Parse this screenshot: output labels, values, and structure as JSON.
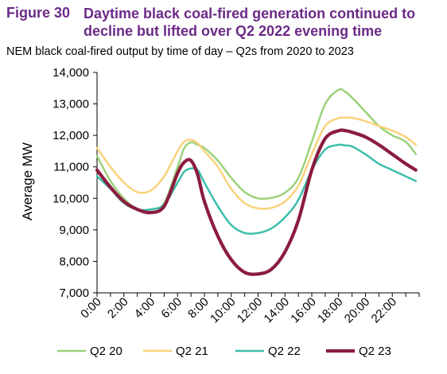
{
  "figure": {
    "number": "Figure 30",
    "title": "Daytime black coal-fired generation continued to decline but lifted over Q2 2022 evening time",
    "subtitle": "NEM black coal-fired output by time of day – Q2s from 2020 to 2023"
  },
  "chart_data": {
    "type": "line",
    "title": "",
    "xlabel": "",
    "ylabel": "Average MW",
    "ylim": [
      7000,
      14000
    ],
    "yticks": [
      7000,
      8000,
      9000,
      10000,
      11000,
      12000,
      13000,
      14000
    ],
    "ytick_labels": [
      "7,000",
      "8,000",
      "9,000",
      "10,000",
      "11,000",
      "12,000",
      "13,000",
      "14,000"
    ],
    "xlim": [
      0,
      24
    ],
    "xticks": [
      0,
      2,
      4,
      6,
      8,
      10,
      12,
      14,
      16,
      18,
      20,
      22
    ],
    "xtick_labels": [
      "0:00",
      "2:00",
      "4:00",
      "6:00",
      "8:00",
      "10:00",
      "12:00",
      "14:00",
      "16:00",
      "18:00",
      "20:00",
      "22:00"
    ],
    "x": [
      0,
      1,
      2,
      3,
      4,
      5,
      6,
      6.5,
      7,
      7.5,
      8,
      9,
      10,
      11,
      12,
      13,
      14,
      15,
      16,
      17,
      18,
      18.5,
      19,
      20,
      21,
      22,
      23,
      23.75
    ],
    "series": [
      {
        "name": "Q2 20",
        "color": "#9bd27a",
        "values": [
          11350,
          10550,
          10000,
          9650,
          9650,
          9850,
          11000,
          11600,
          11780,
          11700,
          11600,
          11200,
          10650,
          10200,
          10000,
          10020,
          10180,
          10650,
          11800,
          13000,
          13450,
          13380,
          13200,
          12750,
          12300,
          12000,
          11800,
          11400
        ]
      },
      {
        "name": "Q2 21",
        "color": "#f9d27c",
        "values": [
          11600,
          11000,
          10500,
          10200,
          10250,
          10700,
          11500,
          11800,
          11860,
          11750,
          11500,
          11000,
          10300,
          9850,
          9680,
          9700,
          9900,
          10400,
          11400,
          12300,
          12550,
          12560,
          12560,
          12450,
          12300,
          12150,
          11950,
          11700
        ]
      },
      {
        "name": "Q2 22",
        "color": "#3cbeab",
        "values": [
          10700,
          10300,
          9850,
          9650,
          9650,
          9800,
          10500,
          10850,
          10950,
          10900,
          10500,
          9750,
          9150,
          8900,
          8900,
          9050,
          9400,
          9950,
          10900,
          11550,
          11700,
          11680,
          11650,
          11400,
          11100,
          10900,
          10700,
          10550
        ]
      },
      {
        "name": "Q2 23",
        "color": "#8b1c3f",
        "values": [
          10900,
          10350,
          9900,
          9650,
          9550,
          9750,
          10800,
          11150,
          11200,
          10750,
          9900,
          8800,
          8050,
          7650,
          7600,
          7750,
          8300,
          9300,
          10900,
          11900,
          12150,
          12150,
          12100,
          11950,
          11700,
          11400,
          11100,
          10900
        ]
      }
    ],
    "grid": false,
    "legend": "bottom"
  }
}
